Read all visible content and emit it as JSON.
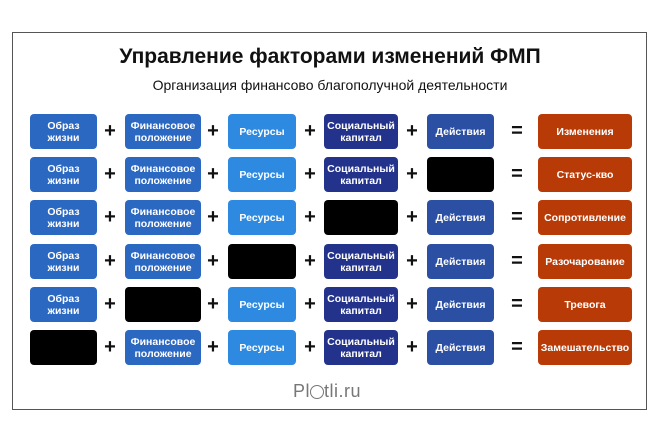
{
  "title": "Управление факторами изменений ФМП",
  "subtitle": "Организация финансово благополучной деятельности",
  "operators": {
    "plus": "+",
    "equals": "="
  },
  "colors": {
    "lifestyle": "#2b68c2",
    "finance": "#2b68c2",
    "resources": "#2e8ae0",
    "social": "#23338c",
    "actions": "#2a4fa3",
    "result": "#b83b07",
    "missing": "#000000"
  },
  "factors": [
    "Образ жизни",
    "Финансовое положение",
    "Ресурсы",
    "Социальный капитал",
    "Действия"
  ],
  "rows": [
    {
      "missing": null,
      "result": "Изменения"
    },
    {
      "missing": 4,
      "result": "Статус-кво"
    },
    {
      "missing": 3,
      "result": "Сопротивление"
    },
    {
      "missing": 2,
      "result": "Разочарование"
    },
    {
      "missing": 1,
      "result": "Тревога"
    },
    {
      "missing": 0,
      "result": "Замешательство"
    }
  ],
  "logo": "Plotli.ru"
}
